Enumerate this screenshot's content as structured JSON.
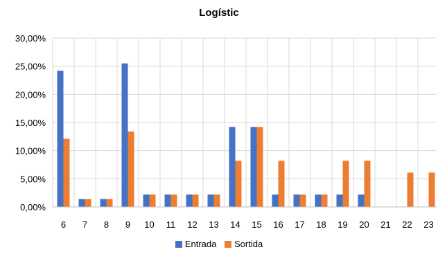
{
  "chart_data": {
    "type": "bar",
    "title": "Logístic",
    "xlabel": "",
    "ylabel": "",
    "categories": [
      "6",
      "7",
      "8",
      "9",
      "10",
      "11",
      "12",
      "13",
      "14",
      "15",
      "16",
      "17",
      "18",
      "19",
      "20",
      "21",
      "22",
      "23"
    ],
    "series": [
      {
        "name": "Entrada",
        "color": "#4472C4",
        "values": [
          24.2,
          1.4,
          1.4,
          25.5,
          2.2,
          2.2,
          2.2,
          2.2,
          14.2,
          14.2,
          2.2,
          2.2,
          2.2,
          2.2,
          2.2,
          0,
          0,
          0
        ]
      },
      {
        "name": "Sortida",
        "color": "#ED7D31",
        "values": [
          12.1,
          1.4,
          1.4,
          13.4,
          2.2,
          2.2,
          2.2,
          2.2,
          8.2,
          14.2,
          8.2,
          2.2,
          2.2,
          8.2,
          8.2,
          0,
          6.1,
          6.1
        ]
      }
    ],
    "ylim": [
      0,
      30
    ],
    "yticks": [
      "0,00%",
      "5,00%",
      "10,00%",
      "15,00%",
      "20,00%",
      "25,00%",
      "30,00%"
    ],
    "grid": true,
    "legend": "bottom"
  }
}
